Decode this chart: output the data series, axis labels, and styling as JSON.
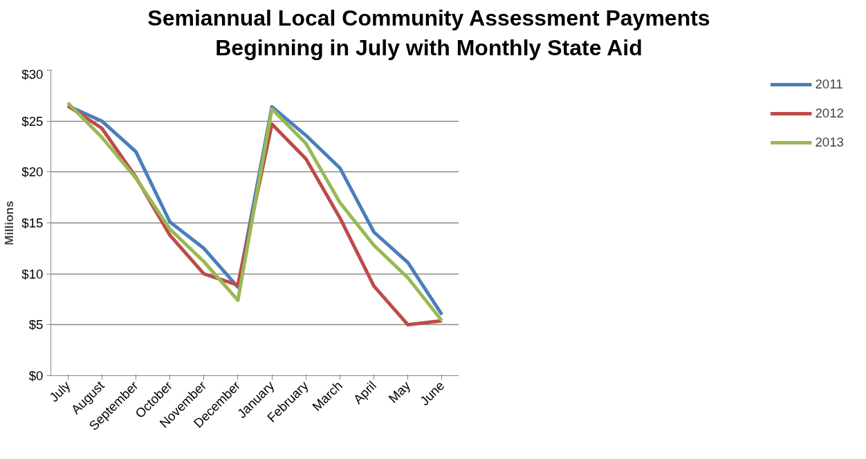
{
  "chart_data": {
    "type": "line",
    "title": "Semiannual Local Community Assessment Payments\nBeginning in July with Monthly State Aid",
    "ylabel": "Millions",
    "categories": [
      "July",
      "August",
      "September",
      "October",
      "November",
      "December",
      "January",
      "February",
      "March",
      "April",
      "May",
      "June"
    ],
    "series": [
      {
        "name": "2011",
        "color": "#4a7ebb",
        "values": [
          26.5,
          25.0,
          22.0,
          15.1,
          12.5,
          8.7,
          26.4,
          23.6,
          20.4,
          14.1,
          11.1,
          6.0
        ]
      },
      {
        "name": "2012",
        "color": "#be4b48",
        "values": [
          26.5,
          24.3,
          19.5,
          13.8,
          10.0,
          8.9,
          24.7,
          21.3,
          15.5,
          8.8,
          5.0,
          5.4
        ]
      },
      {
        "name": "2013",
        "color": "#98b954",
        "values": [
          26.8,
          23.4,
          19.4,
          14.4,
          11.2,
          7.4,
          26.2,
          22.8,
          17.0,
          12.8,
          9.6,
          5.4
        ]
      }
    ],
    "ylim": [
      0,
      30
    ],
    "yticks": [
      {
        "value": 0,
        "label": "$0"
      },
      {
        "value": 5,
        "label": "$5"
      },
      {
        "value": 10,
        "label": "$10"
      },
      {
        "value": 15,
        "label": "$15"
      },
      {
        "value": 20,
        "label": "$20"
      },
      {
        "value": 25,
        "label": "$25"
      },
      {
        "value": 30,
        "label": "$30"
      }
    ],
    "grid": "y",
    "legend": "right",
    "marker": "none",
    "line_style": "solid"
  }
}
